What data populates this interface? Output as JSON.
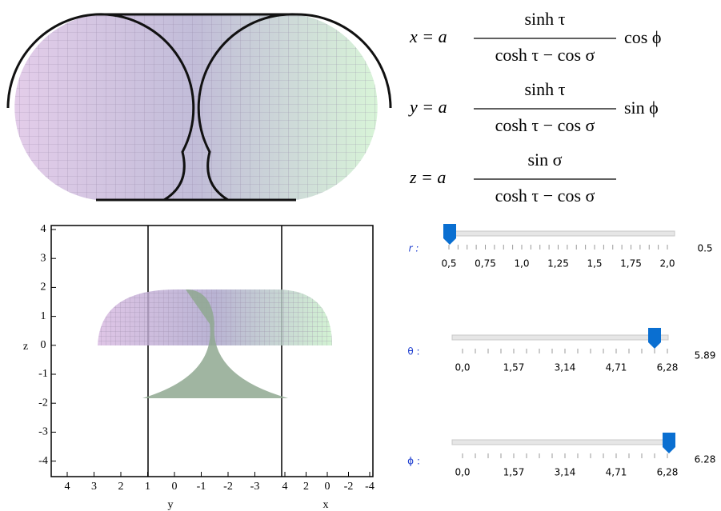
{
  "equations": [
    {
      "lhs": "x = a",
      "numerator": "sinh τ",
      "denominator": "cosh τ − cos σ",
      "factor": "cos ϕ"
    },
    {
      "lhs": "y = a",
      "numerator": "sinh τ",
      "denominator": "cosh τ − cos σ",
      "factor": "sin ϕ"
    },
    {
      "lhs": "z = a",
      "numerator": "sin σ",
      "denominator": "cosh τ − cos σ"
    }
  ],
  "plot": {
    "z_label": "z",
    "z_ticks": [
      "4",
      "3",
      "2",
      "1",
      "0",
      "-1",
      "-2",
      "-3",
      "-4"
    ],
    "y_label": "y",
    "y_ticks": [
      "4",
      "3",
      "2",
      "1",
      "0",
      "-1",
      "-2",
      "-3"
    ],
    "x_label": "x",
    "x_ticks": [
      "4",
      "2",
      "0",
      "-2",
      "-4"
    ]
  },
  "sliders": [
    {
      "label": "r :",
      "ticks": [
        "0,5",
        "0,75",
        "1,0",
        "1,25",
        "1,5",
        "1,75",
        "2,0"
      ],
      "value": "0.5"
    },
    {
      "label": "θ :",
      "ticks": [
        "0,0",
        "1,57",
        "3,14",
        "4,71",
        "6,28"
      ],
      "value": "5.89"
    },
    {
      "label": "ϕ :",
      "ticks": [
        "0,0",
        "1,57",
        "3,14",
        "4,71",
        "6,28"
      ],
      "value": "6.28"
    }
  ]
}
